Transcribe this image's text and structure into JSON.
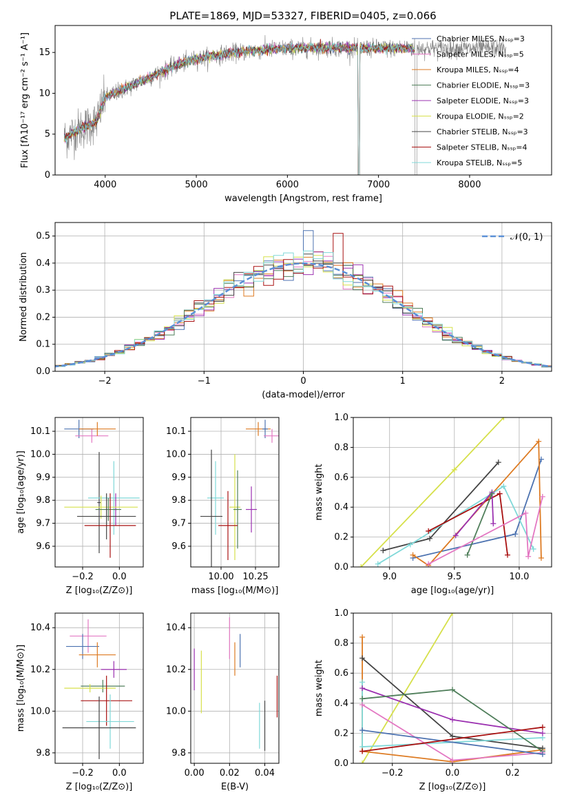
{
  "colors": [
    "#4c72b0",
    "#e377c2",
    "#dd7a21",
    "#4f7e5a",
    "#9b30b0",
    "#d6e04a",
    "#444444",
    "#a81010",
    "#7fd8d8"
  ],
  "chart_data": [
    {
      "id": "spectrum",
      "type": "line",
      "title": "PLATE=1869, MJD=53327, FIBERID=0405, z=0.066",
      "xlabel": "wavelength [Angstrom, rest frame]",
      "ylabel": "Flux [fλ10⁻¹⁷ erg cm⁻² s⁻¹ A⁻¹]",
      "xlim": [
        3450,
        8900
      ],
      "ylim": [
        0,
        18.3
      ],
      "xticks": [
        4000,
        5000,
        6000,
        7000,
        8000
      ],
      "yticks": [
        0,
        5,
        10,
        15
      ],
      "legend_position": "upper right",
      "legend": [
        "Chabrier MILES, Nₛₛₚ=3",
        "Salpeter MILES, Nₛₛₚ=5",
        "Kroupa MILES, Nₛₛₚ=4",
        "Chabrier ELODIE, Nₛₛₚ=3",
        "Salpeter ELODIE, Nₛₛₚ=3",
        "Kroupa ELODIE, Nₛₛₚ=2",
        "Chabrier STELIB, Nₛₛₚ=3",
        "Salpeter STELIB, Nₛₛₚ=4",
        "Kroupa STELIB, Nₛₛₚ=5"
      ],
      "continuum": [
        [
          3550,
          4.5
        ],
        [
          3700,
          5.5
        ],
        [
          3900,
          6.5
        ],
        [
          4000,
          9.5
        ],
        [
          4200,
          10.5
        ],
        [
          4500,
          12.0
        ],
        [
          4800,
          13.5
        ],
        [
          5000,
          14.2
        ],
        [
          5300,
          14.8
        ],
        [
          5600,
          15.2
        ],
        [
          6000,
          15.5
        ],
        [
          6500,
          15.6
        ],
        [
          7000,
          15.5
        ],
        [
          7400,
          15.5
        ]
      ],
      "data_end": 8400,
      "gaps": [
        [
          6775,
          6795
        ],
        [
          7400,
          7420
        ]
      ]
    },
    {
      "id": "residuals",
      "type": "histogram",
      "xlabel": "(data-model)/error",
      "ylabel": "Normed distribution",
      "xlim": [
        -2.5,
        2.5
      ],
      "ylim": [
        0,
        0.55
      ],
      "xticks": [
        -2,
        -1,
        0,
        1,
        2
      ],
      "yticks": [
        0.0,
        0.1,
        0.2,
        0.3,
        0.4,
        0.5
      ],
      "legend_position": "upper right",
      "reference_label": "𝒩(0, 1)",
      "reference_color": "#5a8fd6"
    },
    {
      "id": "age_vs_Z",
      "type": "scatter",
      "xlabel": "Z [log₁₀(Z/Z⊙)]",
      "ylabel": "age  [log₁₀(age/yr)]",
      "xlim": [
        -0.35,
        0.13
      ],
      "ylim": [
        9.51,
        10.16
      ],
      "xticks": [
        -0.2,
        0.0
      ],
      "yticks": [
        9.6,
        9.7,
        9.8,
        9.9,
        10.0,
        10.1
      ],
      "points": [
        {
          "c": 0,
          "x": -0.22,
          "y": 10.11,
          "xe": 0.08,
          "ye": 0.04
        },
        {
          "c": 1,
          "x": -0.15,
          "y": 10.08,
          "xe": 0.09,
          "ye": 0.03
        },
        {
          "c": 2,
          "x": -0.12,
          "y": 10.11,
          "xe": 0.1,
          "ye": 0.03
        },
        {
          "c": 6,
          "x": -0.11,
          "y": 9.79,
          "xe": 0.01,
          "ye": 0.22
        },
        {
          "c": 8,
          "x": -0.03,
          "y": 9.81,
          "xe": 0.14,
          "ye": 0.16
        },
        {
          "c": 4,
          "x": -0.02,
          "y": 9.76,
          "xe": 0.01,
          "ye": 0.07
        },
        {
          "c": 5,
          "x": -0.1,
          "y": 9.77,
          "xe": 0.2,
          "ye": 0.05
        },
        {
          "c": 3,
          "x": -0.06,
          "y": 9.76,
          "xe": 0.07,
          "ye": 0.05
        },
        {
          "c": 6,
          "x": -0.07,
          "y": 9.73,
          "xe": 0.16,
          "ye": 0.1
        },
        {
          "c": 7,
          "x": -0.05,
          "y": 9.69,
          "xe": 0.14,
          "ye": 0.14
        }
      ]
    },
    {
      "id": "age_vs_mass",
      "type": "scatter",
      "xlabel": "mass [log₁₀(M/M⊙)]",
      "ylabel": "",
      "xlim": [
        9.78,
        10.42
      ],
      "ylim": [
        9.51,
        10.16
      ],
      "xticks": [
        10.0,
        10.25
      ],
      "yticks": [
        9.6,
        9.7,
        9.8,
        9.9,
        10.0,
        10.1
      ],
      "points": [
        {
          "c": 2,
          "x": 10.27,
          "y": 10.11,
          "xe": 0.09,
          "ye": 0.03
        },
        {
          "c": 0,
          "x": 10.32,
          "y": 10.11,
          "xe": 0.02,
          "ye": 0.04
        },
        {
          "c": 1,
          "x": 10.37,
          "y": 10.08,
          "xe": 0.06,
          "ye": 0.03
        },
        {
          "c": 8,
          "x": 9.96,
          "y": 9.81,
          "xe": 0.06,
          "ye": 0.16
        },
        {
          "c": 5,
          "x": 10.1,
          "y": 9.77,
          "xe": 0.04,
          "ye": 0.23
        },
        {
          "c": 3,
          "x": 10.12,
          "y": 9.76,
          "xe": 0.03,
          "ye": 0.17
        },
        {
          "c": 4,
          "x": 10.22,
          "y": 9.76,
          "xe": 0.04,
          "ye": 0.1
        },
        {
          "c": 6,
          "x": 9.93,
          "y": 9.73,
          "xe": 0.08,
          "ye": 0.29
        },
        {
          "c": 7,
          "x": 10.05,
          "y": 9.69,
          "xe": 0.07,
          "ye": 0.15
        }
      ]
    },
    {
      "id": "weight_vs_age",
      "type": "line",
      "xlabel": "age  [log₁₀(age/yr)]",
      "ylabel": "mass weight",
      "xlim": [
        8.72,
        10.25
      ],
      "ylim": [
        0,
        1
      ],
      "xticks": [
        9.0,
        9.5,
        10.0
      ],
      "yticks": [
        0.0,
        0.2,
        0.4,
        0.6,
        0.8,
        1.0
      ],
      "series": [
        {
          "c": 5,
          "pts": [
            [
              8.78,
              0.0
            ],
            [
              9.5,
              0.65
            ],
            [
              9.88,
              1.0
            ]
          ]
        },
        {
          "c": 6,
          "pts": [
            [
              8.95,
              0.11
            ],
            [
              9.31,
              0.19
            ],
            [
              9.84,
              0.7
            ]
          ]
        },
        {
          "c": 0,
          "pts": [
            [
              9.18,
              0.06
            ],
            [
              9.97,
              0.22
            ],
            [
              10.17,
              0.72
            ]
          ]
        },
        {
          "c": 2,
          "pts": [
            [
              9.18,
              0.08
            ],
            [
              9.3,
              0.01
            ],
            [
              10.15,
              0.84
            ],
            [
              10.17,
              0.06
            ]
          ]
        },
        {
          "c": 8,
          "pts": [
            [
              8.91,
              0.02
            ],
            [
              9.16,
              0.15
            ],
            [
              9.88,
              0.54
            ],
            [
              10.11,
              0.12
            ]
          ]
        },
        {
          "c": 7,
          "pts": [
            [
              9.3,
              0.24
            ],
            [
              9.85,
              0.49
            ],
            [
              9.91,
              0.08
            ]
          ]
        },
        {
          "c": 4,
          "pts": [
            [
              9.51,
              0.21
            ],
            [
              9.79,
              0.5
            ],
            [
              9.8,
              0.29
            ]
          ]
        },
        {
          "c": 3,
          "pts": [
            [
              9.6,
              0.08
            ],
            [
              9.79,
              0.49
            ]
          ]
        },
        {
          "c": 1,
          "pts": [
            [
              9.3,
              0.02
            ],
            [
              10.05,
              0.36
            ],
            [
              10.07,
              0.07
            ],
            [
              10.18,
              0.47
            ]
          ]
        }
      ]
    },
    {
      "id": "mass_vs_Z",
      "type": "scatter",
      "xlabel": "Z [log₁₀(Z/Z⊙)]",
      "ylabel": "mass [log₁₀(M/M⊙)]",
      "xlim": [
        -0.35,
        0.13
      ],
      "ylim": [
        9.75,
        10.47
      ],
      "xticks": [
        -0.2,
        0.0
      ],
      "yticks": [
        9.8,
        10.0,
        10.2,
        10.4
      ],
      "points": [
        {
          "c": 1,
          "x": -0.17,
          "y": 10.36,
          "xe": 0.1,
          "ye": 0.08
        },
        {
          "c": 0,
          "x": -0.2,
          "y": 10.31,
          "xe": 0.09,
          "ye": 0.06
        },
        {
          "c": 2,
          "x": -0.12,
          "y": 10.27,
          "xe": 0.1,
          "ye": 0.06
        },
        {
          "c": 4,
          "x": -0.03,
          "y": 10.2,
          "xe": 0.07,
          "ye": 0.04
        },
        {
          "c": 3,
          "x": -0.09,
          "y": 10.12,
          "xe": 0.12,
          "ye": 0.03
        },
        {
          "c": 5,
          "x": -0.16,
          "y": 10.11,
          "xe": 0.14,
          "ye": 0.02
        },
        {
          "c": 7,
          "x": -0.07,
          "y": 10.05,
          "xe": 0.14,
          "ye": 0.12
        },
        {
          "c": 8,
          "x": -0.05,
          "y": 9.95,
          "xe": 0.13,
          "ye": 0.13
        },
        {
          "c": 6,
          "x": -0.11,
          "y": 9.92,
          "xe": 0.2,
          "ye": 0.15
        }
      ]
    },
    {
      "id": "mass_vs_ebv",
      "type": "scatter",
      "xlabel": "E(B-V)",
      "ylabel": "",
      "xlim": [
        -0.002,
        0.048
      ],
      "ylim": [
        9.75,
        10.47
      ],
      "xticks": [
        0.0,
        0.02,
        0.04
      ],
      "yticks": [
        9.8,
        10.0,
        10.2,
        10.4
      ],
      "points": [
        {
          "c": 4,
          "x": 0.0,
          "y": 10.2,
          "xe": 0,
          "ye": 0.1
        },
        {
          "c": 5,
          "x": 0.004,
          "y": 10.14,
          "xe": 0,
          "ye": 0.15
        },
        {
          "c": 1,
          "x": 0.02,
          "y": 10.35,
          "xe": 0,
          "ye": 0.1
        },
        {
          "c": 2,
          "x": 0.023,
          "y": 10.25,
          "xe": 0,
          "ye": 0.08
        },
        {
          "c": 0,
          "x": 0.026,
          "y": 10.29,
          "xe": 0,
          "ye": 0.08
        },
        {
          "c": 8,
          "x": 0.037,
          "y": 9.93,
          "xe": 0,
          "ye": 0.11
        },
        {
          "c": 6,
          "x": 0.04,
          "y": 9.93,
          "xe": 0,
          "ye": 0.12
        },
        {
          "c": 7,
          "x": 0.047,
          "y": 10.07,
          "xe": 0,
          "ye": 0.1
        }
      ]
    },
    {
      "id": "weight_vs_Z",
      "type": "line",
      "xlabel": "Z [log₁₀(Z/Z⊙)]",
      "ylabel": "mass weight",
      "xlim": [
        -0.33,
        0.33
      ],
      "ylim": [
        0,
        1
      ],
      "xticks": [
        -0.2,
        0.0,
        0.2
      ],
      "yticks": [
        0.0,
        0.2,
        0.4,
        0.6,
        0.8,
        1.0
      ],
      "series": [
        {
          "c": 5,
          "pts": [
            [
              -0.3,
              0.0
            ],
            [
              0.0,
              1.0
            ]
          ]
        },
        {
          "c": 2,
          "pts": [
            [
              -0.3,
              0.84
            ],
            [
              -0.3,
              0.08
            ],
            [
              0.0,
              0.01
            ],
            [
              0.3,
              0.09
            ]
          ]
        },
        {
          "c": 6,
          "pts": [
            [
              -0.3,
              0.7
            ],
            [
              0.0,
              0.18
            ],
            [
              0.3,
              0.1
            ]
          ]
        },
        {
          "c": 8,
          "pts": [
            [
              -0.3,
              0.54
            ],
            [
              -0.3,
              0.11
            ],
            [
              0.3,
              0.17
            ]
          ]
        },
        {
          "c": 4,
          "pts": [
            [
              -0.3,
              0.5
            ],
            [
              0.0,
              0.29
            ],
            [
              0.3,
              0.2
            ]
          ]
        },
        {
          "c": 3,
          "pts": [
            [
              -0.3,
              0.43
            ],
            [
              0.0,
              0.49
            ],
            [
              0.3,
              0.08
            ]
          ]
        },
        {
          "c": 1,
          "pts": [
            [
              -0.3,
              0.39
            ],
            [
              0.0,
              0.02
            ],
            [
              0.3,
              0.07
            ]
          ]
        },
        {
          "c": 0,
          "pts": [
            [
              -0.3,
              0.22
            ],
            [
              0.3,
              0.06
            ]
          ]
        },
        {
          "c": 7,
          "pts": [
            [
              -0.3,
              0.08
            ],
            [
              0.3,
              0.24
            ]
          ]
        }
      ]
    }
  ]
}
